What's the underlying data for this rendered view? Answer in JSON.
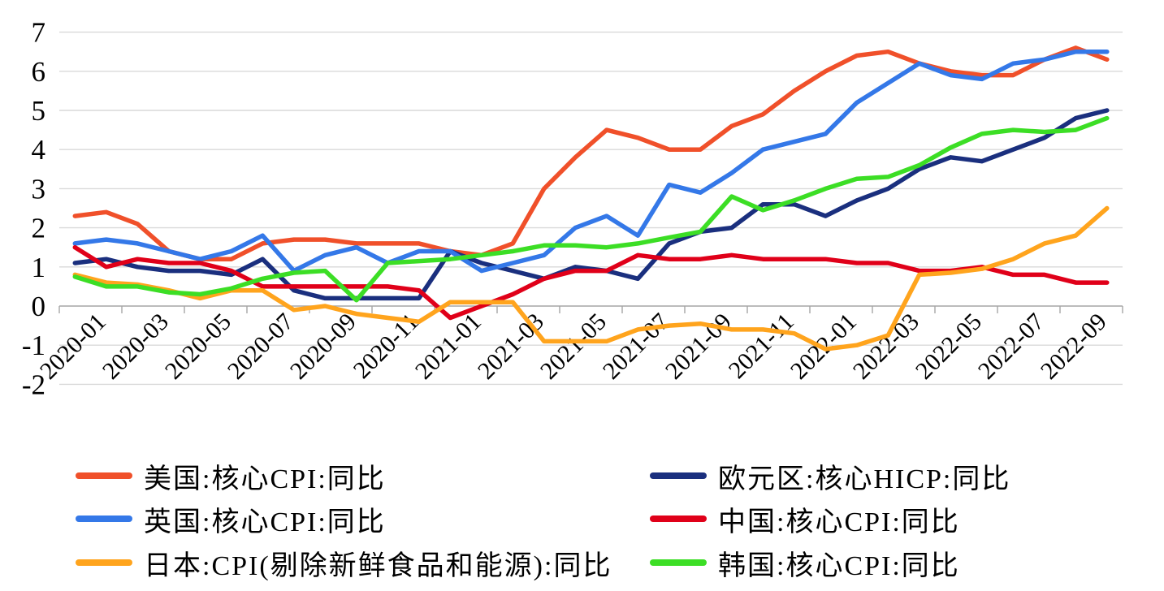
{
  "chart_data": {
    "type": "line",
    "title": "",
    "xlabel": "",
    "ylabel": "",
    "ylim": [
      -2,
      7
    ],
    "yticks": [
      7,
      6,
      5,
      4,
      3,
      2,
      1,
      0,
      -1,
      -2
    ],
    "grid": "horizontal",
    "legend_position": "bottom-two-columns",
    "x": [
      "2020-01",
      "2020-02",
      "2020-03",
      "2020-04",
      "2020-05",
      "2020-06",
      "2020-07",
      "2020-08",
      "2020-09",
      "2020-10",
      "2020-11",
      "2020-12",
      "2021-01",
      "2021-02",
      "2021-03",
      "2021-04",
      "2021-05",
      "2021-06",
      "2021-07",
      "2021-08",
      "2021-09",
      "2021-10",
      "2021-11",
      "2021-12",
      "2022-01",
      "2022-02",
      "2022-03",
      "2022-04",
      "2022-05",
      "2022-06",
      "2022-07",
      "2022-08",
      "2022-09",
      "2022-10"
    ],
    "x_tick_labels": [
      "2020-01",
      "2020-03",
      "2020-05",
      "2020-07",
      "2020-09",
      "2020-11",
      "2021-01",
      "2021-03",
      "2021-05",
      "2021-07",
      "2021-09",
      "2021-11",
      "2022-01",
      "2022-03",
      "2022-05",
      "2022-07",
      "2022-09"
    ],
    "series": [
      {
        "name": "美国:核心CPI:同比",
        "color": "#F0502A",
        "values": [
          2.3,
          2.4,
          2.1,
          1.4,
          1.2,
          1.2,
          1.6,
          1.7,
          1.7,
          1.6,
          1.6,
          1.6,
          1.4,
          1.3,
          1.6,
          3.0,
          3.8,
          4.5,
          4.3,
          4.0,
          4.0,
          4.6,
          4.9,
          5.5,
          6.0,
          6.4,
          6.5,
          6.2,
          6.0,
          5.9,
          5.9,
          6.3,
          6.6,
          6.3
        ]
      },
      {
        "name": "欧元区:核心HICP:同比",
        "color": "#1A2F7E",
        "values": [
          1.1,
          1.2,
          1.0,
          0.9,
          0.9,
          0.8,
          1.2,
          0.4,
          0.2,
          0.2,
          0.2,
          0.2,
          1.4,
          1.1,
          0.9,
          0.7,
          1.0,
          0.9,
          0.7,
          1.6,
          1.9,
          2.0,
          2.6,
          2.6,
          2.3,
          2.7,
          3.0,
          3.5,
          3.8,
          3.7,
          4.0,
          4.3,
          4.8,
          5.0
        ]
      },
      {
        "name": "英国:核心CPI:同比",
        "color": "#3478E8",
        "values": [
          1.6,
          1.7,
          1.6,
          1.4,
          1.2,
          1.4,
          1.8,
          0.9,
          1.3,
          1.5,
          1.1,
          1.4,
          1.4,
          0.9,
          1.1,
          1.3,
          2.0,
          2.3,
          1.8,
          3.1,
          2.9,
          3.4,
          4.0,
          4.2,
          4.4,
          5.2,
          5.7,
          6.2,
          5.9,
          5.8,
          6.2,
          6.3,
          6.5,
          6.5
        ]
      },
      {
        "name": "中国:核心CPI:同比",
        "color": "#E00019",
        "values": [
          1.5,
          1.0,
          1.2,
          1.1,
          1.1,
          0.9,
          0.5,
          0.5,
          0.5,
          0.5,
          0.5,
          0.4,
          -0.3,
          0.0,
          0.3,
          0.7,
          0.9,
          0.9,
          1.3,
          1.2,
          1.2,
          1.3,
          1.2,
          1.2,
          1.2,
          1.1,
          1.1,
          0.9,
          0.9,
          1.0,
          0.8,
          0.8,
          0.6,
          0.6
        ]
      },
      {
        "name": "日本:CPI(剔除新鲜食品和能源):同比",
        "color": "#FFA41D",
        "values": [
          0.8,
          0.6,
          0.55,
          0.4,
          0.2,
          0.4,
          0.4,
          -0.1,
          0.0,
          -0.2,
          -0.3,
          -0.4,
          0.1,
          0.1,
          0.1,
          -0.9,
          -0.9,
          -0.9,
          -0.6,
          -0.5,
          -0.45,
          -0.6,
          -0.6,
          -0.7,
          -1.1,
          -1.0,
          -0.75,
          0.8,
          0.85,
          0.95,
          1.2,
          1.6,
          1.8,
          2.5
        ]
      },
      {
        "name": "韩国:核心CPI:同比",
        "color": "#3CDE25",
        "values": [
          0.75,
          0.5,
          0.5,
          0.35,
          0.3,
          0.45,
          0.7,
          0.85,
          0.9,
          0.15,
          1.1,
          1.15,
          1.2,
          1.3,
          1.4,
          1.55,
          1.55,
          1.5,
          1.6,
          1.75,
          1.9,
          2.8,
          2.45,
          2.7,
          3.0,
          3.25,
          3.3,
          3.6,
          4.05,
          4.4,
          4.5,
          4.45,
          4.5,
          4.8
        ]
      }
    ],
    "legend": {
      "left_column_series": [
        0,
        2,
        4
      ],
      "right_column_series": [
        1,
        3,
        5
      ]
    },
    "style": {
      "gridline_color": "#D9D9D9",
      "axis_color": "#A6A6A6",
      "label_color": "#000000",
      "background": "#FFFFFF"
    }
  }
}
